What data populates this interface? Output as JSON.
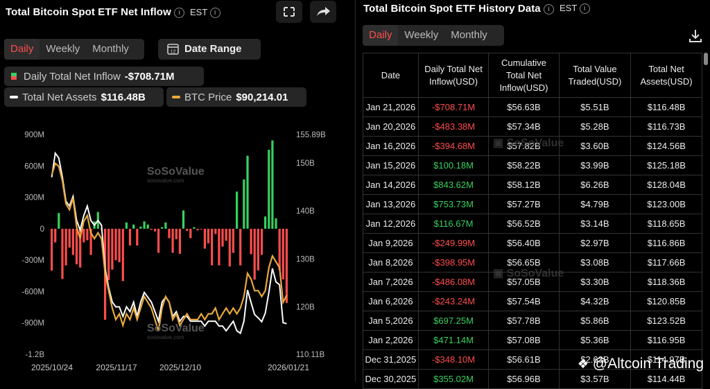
{
  "left": {
    "title": "Total Bitcoin Spot ETF Net Inflow",
    "timezone": "EST",
    "tabs": [
      "Daily",
      "Weekly",
      "Monthly"
    ],
    "active_tab": "Daily",
    "date_range_label": "Date Range",
    "legend": {
      "inflow_label": "Daily Total Net Inflow",
      "inflow_value": "-$708.71M",
      "assets_label": "Total Net Assets",
      "assets_value": "$116.48B",
      "btc_label": "BTC Price",
      "btc_value": "$90,214.01"
    },
    "watermark": "SoSoValue",
    "watermark_sub": "sosovalue.com"
  },
  "right": {
    "title": "Total Bitcoin Spot ETF History Data",
    "timezone": "EST",
    "tabs": [
      "Daily",
      "Weekly",
      "Monthly"
    ],
    "active_tab": "Daily",
    "columns": [
      "Date",
      "Daily Total Net Inflow(USD)",
      "Cumulative Total Net Inflow(USD)",
      "Total Value Traded(USD)",
      "Total Net Assets(USD)"
    ],
    "rows": [
      [
        "Jan 21,2026",
        "-$708.71M",
        "$56.63B",
        "$5.51B",
        "$116.48B"
      ],
      [
        "Jan 20,2026",
        "-$483.38M",
        "$57.34B",
        "$5.28B",
        "$116.73B"
      ],
      [
        "Jan 16,2026",
        "-$394.68M",
        "$57.82B",
        "$3.60B",
        "$124.56B"
      ],
      [
        "Jan 15,2026",
        "$100.18M",
        "$58.22B",
        "$3.99B",
        "$125.18B"
      ],
      [
        "Jan 14,2026",
        "$843.62M",
        "$58.12B",
        "$6.26B",
        "$128.04B"
      ],
      [
        "Jan 13,2026",
        "$753.73M",
        "$57.27B",
        "$4.79B",
        "$123.00B"
      ],
      [
        "Jan 12,2026",
        "$116.67M",
        "$56.52B",
        "$3.14B",
        "$118.65B"
      ],
      [
        "Jan 9,2026",
        "-$249.99M",
        "$56.40B",
        "$2.97B",
        "$116.86B"
      ],
      [
        "Jan 8,2026",
        "-$398.95M",
        "$56.65B",
        "$3.08B",
        "$117.66B"
      ],
      [
        "Jan 7,2026",
        "-$486.08M",
        "$57.05B",
        "$3.30B",
        "$118.36B"
      ],
      [
        "Jan 6,2026",
        "-$243.24M",
        "$57.54B",
        "$4.32B",
        "$120.85B"
      ],
      [
        "Jan 5,2026",
        "$697.25M",
        "$57.78B",
        "$5.86B",
        "$123.52B"
      ],
      [
        "Jan 2,2026",
        "$471.14M",
        "$57.08B",
        "$5.36B",
        "$116.95B"
      ],
      [
        "Dec 31,2025",
        "-$348.10M",
        "$56.61B",
        "$2.63B",
        "$114.97B"
      ],
      [
        "Dec 30,2025",
        "$355.02M",
        "$56.96B",
        "$3.57B",
        "$114.44B"
      ]
    ],
    "attribution": "@Altcoin Trading"
  },
  "colors": {
    "positive": "#39d05f",
    "negative": "#ff4d4d",
    "btc_line": "#e8a93c",
    "assets_line": "#ffffff",
    "accent": "#ff4d4d"
  },
  "chart_data": {
    "type": "bar",
    "title": "Total Bitcoin Spot ETF Net Inflow",
    "x_tick_labels": [
      "2025/10/24",
      "2025/11/17",
      "2025/12/10",
      "2026/01/21"
    ],
    "y_left_ticks": [
      "900M",
      "600M",
      "300M",
      "0",
      "-300M",
      "-600M",
      "-900M",
      "-1.2B"
    ],
    "y_left_range": [
      -1200,
      900
    ],
    "y_right_ticks": [
      "155.89B",
      "150B",
      "140B",
      "130B",
      "120B",
      "110.11B"
    ],
    "y_right_range": [
      110.11,
      155.89
    ],
    "series": [
      {
        "name": "Daily Total Net Inflow",
        "unit": "M USD",
        "values": [
          -400,
          -130,
          150,
          -480,
          -350,
          -180,
          -250,
          -340,
          -370,
          -130,
          -110,
          -250,
          70,
          160,
          -10,
          -870,
          -490,
          -390,
          -300,
          -320,
          -500,
          60,
          -160,
          40,
          -160,
          20,
          70,
          40,
          -10,
          -25,
          -230,
          15,
          60,
          -90,
          -230,
          -100,
          -240,
          175,
          -20,
          -90,
          15,
          -15,
          -5,
          -190,
          -140,
          -350,
          -50,
          -350,
          -170,
          -115,
          -360,
          -230,
          355,
          -350,
          471,
          697,
          -243,
          -486,
          -399,
          -250,
          117,
          754,
          844,
          100,
          -395,
          -483,
          -709
        ]
      },
      {
        "name": "Total Net Assets",
        "unit": "B USD",
        "values": [
          147,
          152,
          151,
          147,
          142,
          141,
          143,
          138,
          136,
          139,
          141,
          138,
          137,
          138,
          137,
          128,
          124,
          121,
          120,
          120,
          118,
          120,
          119,
          121,
          118,
          121,
          123,
          122,
          121,
          119,
          117,
          121,
          122,
          121,
          118,
          119,
          117,
          118,
          118,
          117,
          117,
          117,
          117,
          116,
          117,
          117,
          117,
          116,
          116,
          115,
          116,
          117,
          115,
          114.5,
          117,
          123.5,
          120.9,
          118.4,
          117.7,
          116.9,
          118.7,
          123,
          128,
          125.2,
          124.6,
          116.7,
          116.5
        ]
      },
      {
        "name": "BTC Price",
        "unit": "K USD",
        "values": [
          111,
          113,
          112.5,
          110,
          106,
          105,
          107,
          102,
          100,
          103,
          104,
          101,
          100,
          101,
          100,
          94,
          91,
          88,
          86,
          87,
          85,
          87,
          86,
          88,
          86,
          88,
          90,
          89,
          88,
          86,
          84,
          88,
          90,
          89,
          86,
          87,
          85,
          86,
          87,
          86,
          86,
          86,
          87,
          86,
          87,
          87,
          88,
          86,
          87,
          88,
          87,
          88,
          87,
          88,
          90,
          94,
          93,
          91,
          91,
          90,
          91,
          95,
          97,
          96,
          95,
          89,
          90.2
        ]
      }
    ]
  }
}
